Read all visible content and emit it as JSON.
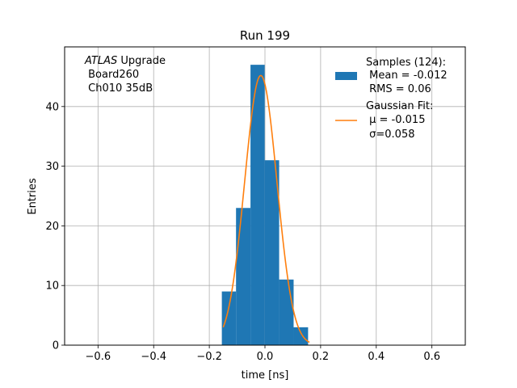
{
  "chart_data": {
    "type": "bar",
    "title": "Run 199",
    "xlabel": "time [ns]",
    "ylabel": "Entries",
    "xlim": [
      -0.72,
      0.72
    ],
    "ylim": [
      0,
      50
    ],
    "xticks": [
      -0.6,
      -0.4,
      -0.2,
      0.0,
      0.2,
      0.4,
      0.6
    ],
    "xtick_labels": [
      "−0.6",
      "−0.4",
      "−0.2",
      "0.0",
      "0.2",
      "0.4",
      "0.6"
    ],
    "yticks": [
      0,
      10,
      20,
      30,
      40
    ],
    "ytick_labels": [
      "0",
      "10",
      "20",
      "30",
      "40"
    ],
    "grid": true,
    "annotation": {
      "italic": "ATLAS",
      "first_rest": " Upgrade",
      "lines": [
        " Board260",
        " Ch010 35dB"
      ]
    },
    "histogram": {
      "name_lines": [
        "Samples (124):",
        " Mean = -0.012",
        " RMS = 0.06"
      ],
      "color": "#1f77b4",
      "bin_edges": [
        -0.155,
        -0.104,
        -0.052,
        -0.001,
        0.051,
        0.103,
        0.155
      ],
      "counts": [
        9,
        23,
        47,
        31,
        11,
        3
      ]
    },
    "fit": {
      "type": "gaussian",
      "name_lines": [
        "Gaussian Fit:",
        " μ = -0.015",
        " σ=0.058"
      ],
      "color": "#ff7f0e",
      "amplitude": 45.2,
      "mu": -0.015,
      "sigma": 0.058,
      "x_range": [
        -0.15,
        0.16
      ]
    },
    "legend_position": "upper right"
  }
}
